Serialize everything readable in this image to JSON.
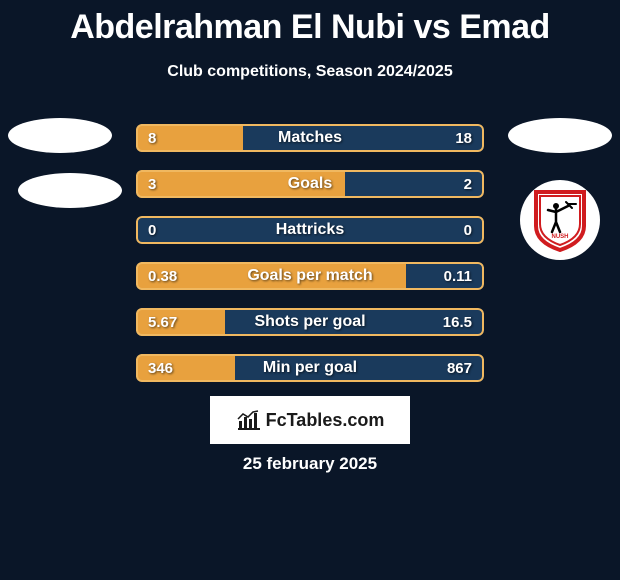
{
  "title": "Abdelrahman El Nubi vs Emad",
  "subtitle": "Club competitions, Season 2024/2025",
  "date": "25 february 2025",
  "brand": "FcTables.com",
  "colors": {
    "background": "#0a1628",
    "bar_left_fill": "#e8a13e",
    "bar_right_fill": "#1a3a5c",
    "bar_border": "#f0b860",
    "text": "#ffffff",
    "brand_bg": "#ffffff",
    "brand_text": "#1a1a1a"
  },
  "fontsize": {
    "title": 34,
    "subtitle": 16,
    "bar_value": 15,
    "bar_label": 16,
    "brand": 18,
    "date": 17
  },
  "bars": [
    {
      "label": "Matches",
      "left": "8",
      "right": "18",
      "left_pct": 30.8
    },
    {
      "label": "Goals",
      "left": "3",
      "right": "2",
      "left_pct": 60.0
    },
    {
      "label": "Hattricks",
      "left": "0",
      "right": "0",
      "left_pct": 0.0
    },
    {
      "label": "Goals per match",
      "left": "0.38",
      "right": "0.11",
      "left_pct": 77.6
    },
    {
      "label": "Shots per goal",
      "left": "5.67",
      "right": "16.5",
      "left_pct": 25.6
    },
    {
      "label": "Min per goal",
      "left": "346",
      "right": "867",
      "left_pct": 28.5
    }
  ],
  "shield": {
    "bg": "#ffffff",
    "border": "#d01c1f",
    "archer": "#000000"
  }
}
